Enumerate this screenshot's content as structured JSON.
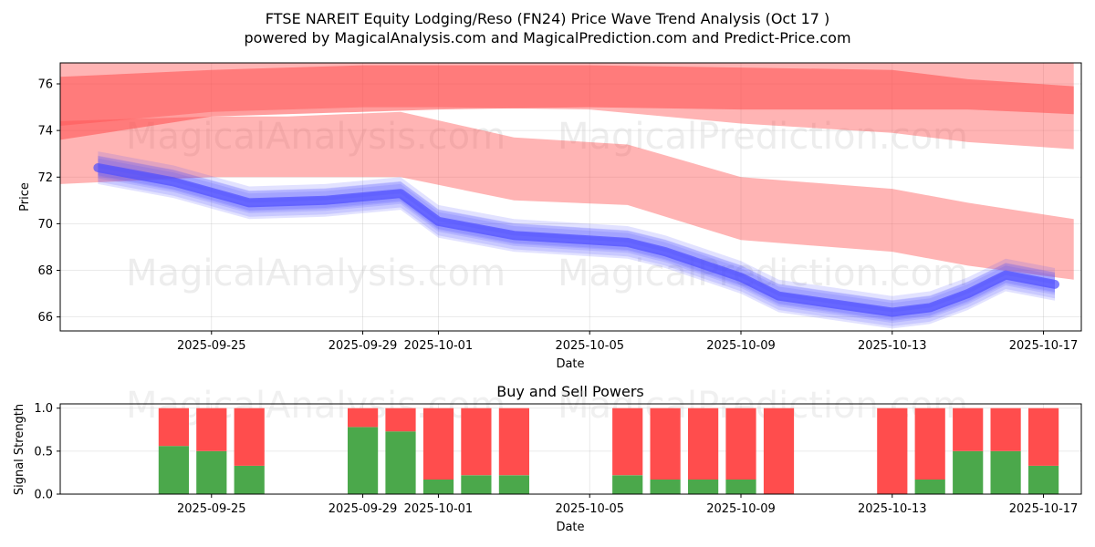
{
  "title_line1": "FTSE NAREIT Equity Lodging/Reso (FN24) Price Wave Trend Analysis (Oct 17 )",
  "title_line2": "powered by MagicalAnalysis.com and MagicalPrediction.com and Predict-Price.com",
  "watermarks": [
    "MagicalAnalysis.com",
    "MagicalPrediction.com"
  ],
  "colors": {
    "red_band": "#ff4d4d",
    "blue_band": "#4d4dff",
    "buy": "#4ba84b",
    "sell": "#ff4d4d"
  },
  "chart_data": [
    {
      "type": "area",
      "title": "",
      "xlabel": "Date",
      "ylabel": "Price",
      "x_domain": [
        "2025-09-21",
        "2025-10-18"
      ],
      "ylim": [
        65.4,
        76.9
      ],
      "yticks": [
        66,
        68,
        70,
        72,
        74,
        76
      ],
      "ytick_labels": [
        "66",
        "68",
        "70",
        "72",
        "74",
        "76"
      ],
      "xticks": [
        "2025-09-25",
        "2025-09-29",
        "2025-10-01",
        "2025-10-05",
        "2025-10-09",
        "2025-10-13",
        "2025-10-17"
      ],
      "xtick_labels": [
        "2025-09-25",
        "2025-09-29",
        "2025-10-01",
        "2025-10-05",
        "2025-10-09",
        "2025-10-13",
        "2025-10-17"
      ],
      "grid": true,
      "series": [
        {
          "name": "upper red band",
          "x": [
            "2025-09-21",
            "2025-09-25",
            "2025-09-29",
            "2025-10-01",
            "2025-10-05",
            "2025-10-09",
            "2025-10-13",
            "2025-10-15",
            "2025-10-17.8"
          ],
          "low": [
            73.6,
            74.6,
            74.8,
            74.9,
            75.0,
            74.9,
            74.9,
            74.9,
            74.7
          ],
          "high": [
            76.3,
            76.6,
            76.8,
            76.8,
            76.8,
            76.7,
            76.6,
            76.2,
            75.9
          ]
        },
        {
          "name": "upper red band 2",
          "x": [
            "2025-09-21",
            "2025-09-25",
            "2025-09-29",
            "2025-10-01",
            "2025-10-05",
            "2025-10-09",
            "2025-10-13",
            "2025-10-15",
            "2025-10-17.8"
          ],
          "low": [
            74.2,
            74.8,
            75.0,
            75.0,
            74.9,
            74.3,
            73.9,
            73.5,
            73.2
          ],
          "high": [
            76.9,
            76.9,
            76.9,
            76.9,
            76.9,
            76.9,
            76.9,
            76.9,
            76.9
          ]
        },
        {
          "name": "middle red band",
          "x": [
            "2025-09-21",
            "2025-09-25",
            "2025-09-27",
            "2025-09-30",
            "2025-10-03",
            "2025-10-06",
            "2025-10-09",
            "2025-10-13",
            "2025-10-15",
            "2025-10-17.8"
          ],
          "low": [
            71.7,
            72.0,
            72.0,
            72.0,
            71.0,
            70.8,
            69.3,
            68.8,
            68.2,
            67.6
          ],
          "high": [
            74.4,
            74.6,
            74.6,
            74.8,
            73.7,
            73.4,
            72.0,
            71.5,
            70.9,
            70.2
          ]
        },
        {
          "name": "blue price wave",
          "x": [
            "2025-09-22",
            "2025-09-24",
            "2025-09-26",
            "2025-09-28",
            "2025-09-30",
            "2025-10-01",
            "2025-10-03",
            "2025-10-06",
            "2025-10-07",
            "2025-10-09",
            "2025-10-10",
            "2025-10-13",
            "2025-10-14",
            "2025-10-15",
            "2025-10-16",
            "2025-10-17.3"
          ],
          "values": [
            72.4,
            71.8,
            70.9,
            71.0,
            71.3,
            70.1,
            69.5,
            69.2,
            68.8,
            67.7,
            66.9,
            66.2,
            66.4,
            67.0,
            67.8,
            67.4
          ]
        }
      ]
    },
    {
      "type": "bar",
      "title": "Buy and Sell Powers",
      "xlabel": "Date",
      "ylabel": "Signal Strength",
      "ylim": [
        0,
        1.05
      ],
      "yticks": [
        0.0,
        0.5,
        1.0
      ],
      "ytick_labels": [
        "0.0",
        "0.5",
        "1.0"
      ],
      "xticks": [
        "2025-09-25",
        "2025-09-29",
        "2025-10-01",
        "2025-10-05",
        "2025-10-09",
        "2025-10-13",
        "2025-10-17"
      ],
      "xtick_labels": [
        "2025-09-25",
        "2025-09-29",
        "2025-10-01",
        "2025-10-05",
        "2025-10-09",
        "2025-10-13",
        "2025-10-17"
      ],
      "categories": [
        "2025-09-24",
        "2025-09-25",
        "2025-09-26",
        "2025-09-29",
        "2025-09-30",
        "2025-10-01",
        "2025-10-02",
        "2025-10-03",
        "2025-10-06",
        "2025-10-07",
        "2025-10-08",
        "2025-10-09",
        "2025-10-10",
        "2025-10-13",
        "2025-10-14",
        "2025-10-15",
        "2025-10-16",
        "2025-10-17"
      ],
      "series": [
        {
          "name": "Buy",
          "values": [
            0.56,
            0.5,
            0.33,
            0.78,
            0.73,
            0.17,
            0.22,
            0.22,
            0.22,
            0.17,
            0.17,
            0.17,
            0.0,
            0.0,
            0.17,
            0.5,
            0.5,
            0.33
          ]
        },
        {
          "name": "Sell",
          "values": [
            0.44,
            0.5,
            0.67,
            0.22,
            0.27,
            0.83,
            0.78,
            0.78,
            0.78,
            0.83,
            0.83,
            0.83,
            1.0,
            1.0,
            0.83,
            0.5,
            0.5,
            0.67
          ]
        }
      ]
    }
  ]
}
